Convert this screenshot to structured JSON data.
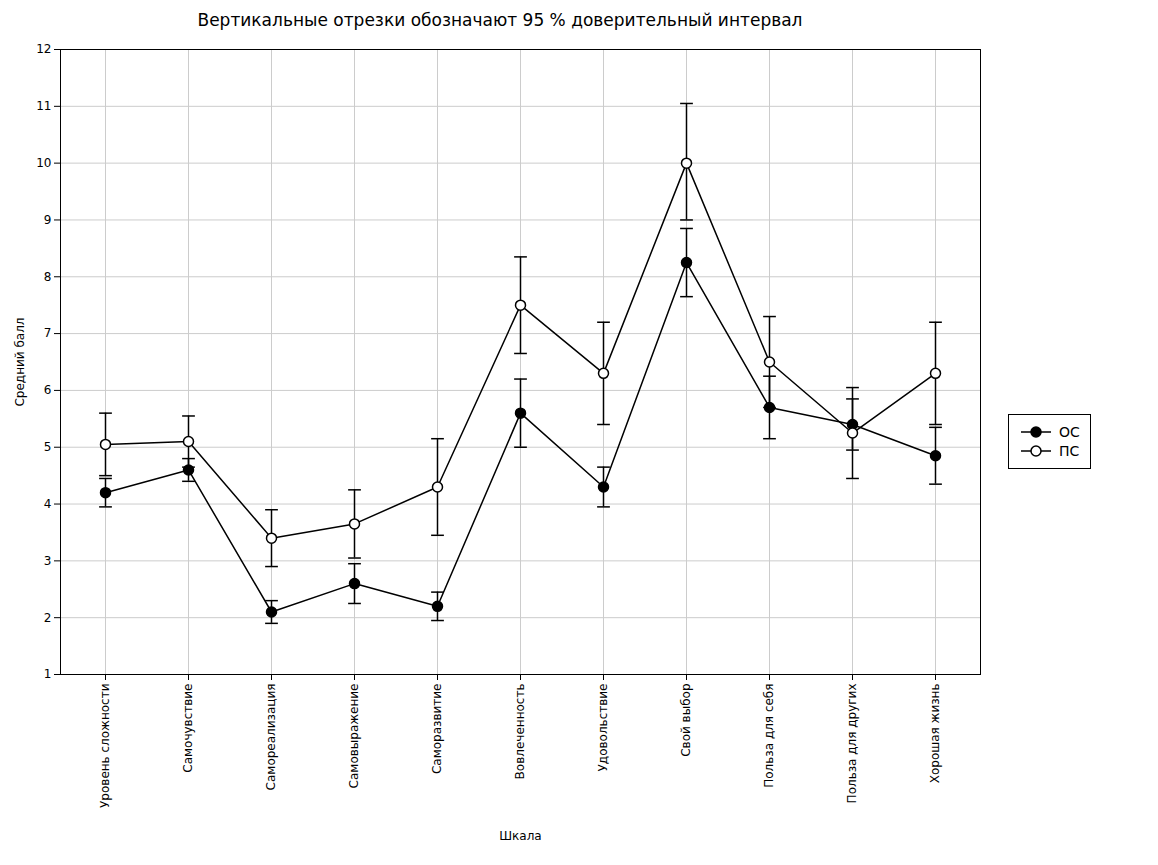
{
  "chart_data": {
    "type": "line",
    "title": "Вертикальные отрезки обозначают 95 % доверительный интервал",
    "xlabel": "Шкала",
    "ylabel": "Средний балл",
    "categories": [
      "Уровень сложности",
      "Самочувствие",
      "Самореализация",
      "Самовыражение",
      "Саморазвитие",
      "Вовлеченность",
      "Удовольствие",
      "Свой выбор",
      "Польза для себя",
      "Польза для других",
      "Хорошая жизнь"
    ],
    "series": [
      {
        "name": "ОС",
        "color": "#000000",
        "marker": "circle",
        "values": [
          4.2,
          4.6,
          2.1,
          2.6,
          2.2,
          5.6,
          4.3,
          8.25,
          5.7,
          5.4,
          4.85
        ],
        "err_low": [
          0.25,
          0.2,
          0.2,
          0.35,
          0.25,
          0.6,
          0.35,
          0.6,
          0.55,
          0.45,
          0.5
        ],
        "err_high": [
          0.25,
          0.2,
          0.2,
          0.35,
          0.25,
          0.6,
          0.35,
          0.6,
          0.55,
          0.45,
          0.5
        ]
      },
      {
        "name": "ПС",
        "color": "#000000",
        "marker": "open_circle",
        "values": [
          5.05,
          5.1,
          3.4,
          3.65,
          4.3,
          7.5,
          6.3,
          10.0,
          6.5,
          5.25,
          6.3
        ],
        "err_low": [
          0.55,
          0.45,
          0.5,
          0.6,
          0.85,
          0.85,
          0.9,
          1.0,
          0.8,
          0.8,
          0.9
        ],
        "err_high": [
          0.55,
          0.45,
          0.5,
          0.6,
          0.85,
          0.85,
          0.9,
          1.05,
          0.8,
          0.8,
          0.9
        ]
      }
    ],
    "ylim": [
      1,
      12
    ],
    "yticks": [
      1,
      2,
      3,
      4,
      5,
      6,
      7,
      8,
      9,
      10,
      11,
      12
    ],
    "grid": true,
    "legend": "right"
  }
}
